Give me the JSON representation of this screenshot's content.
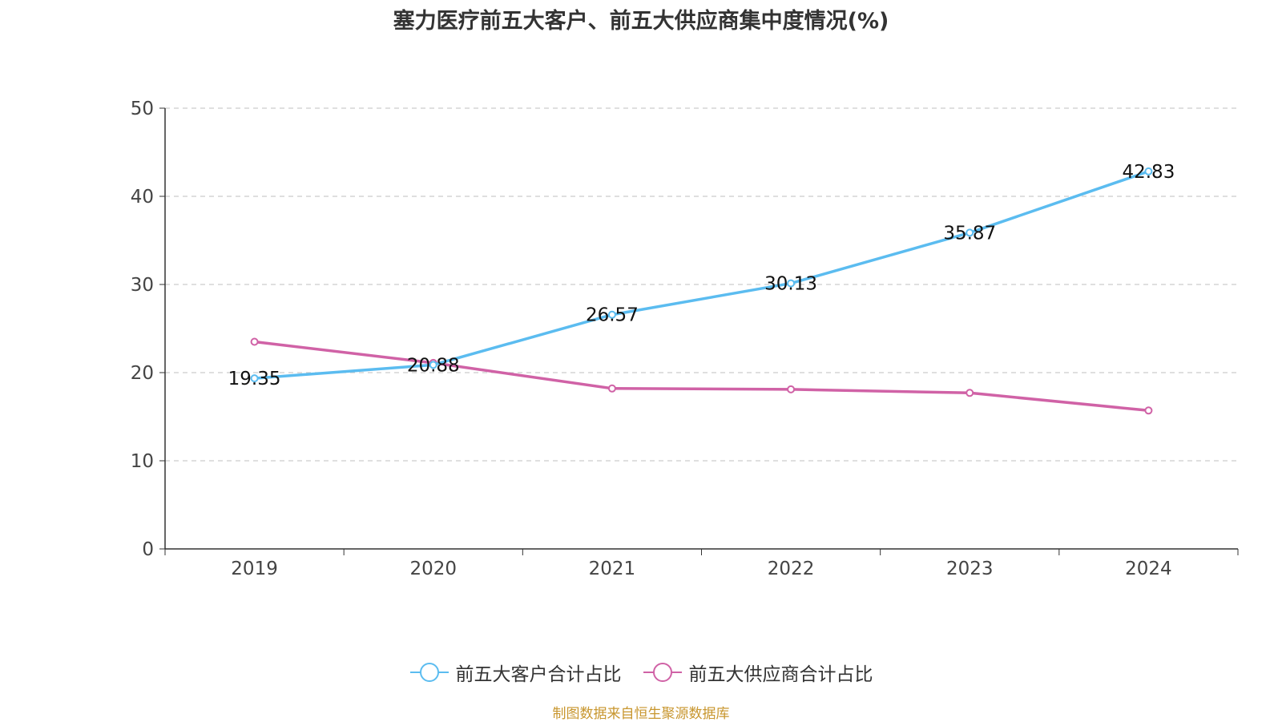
{
  "chart_data": {
    "type": "line",
    "title": "塞力医疗前五大客户、前五大供应商集中度情况(%)",
    "categories": [
      "2019",
      "2020",
      "2021",
      "2022",
      "2023",
      "2024"
    ],
    "ylim": [
      0,
      50
    ],
    "yticks": [
      "0",
      "10",
      "20",
      "30",
      "40",
      "50"
    ],
    "grid": "horizontal dashed",
    "legend_position": "bottom-center",
    "series": [
      {
        "name": "前五大客户合计占比",
        "color": "#5bbcf0",
        "values": [
          19.35,
          20.88,
          26.57,
          30.13,
          35.87,
          42.83
        ],
        "labels": [
          "19.35",
          "20.88",
          "26.57",
          "30.13",
          "35.87",
          "42.83"
        ]
      },
      {
        "name": "前五大供应商合计占比",
        "color": "#d062a6",
        "values": [
          23.5,
          21.1,
          18.2,
          18.1,
          17.7,
          15.7
        ]
      }
    ],
    "source": "制图数据来自恒生聚源数据库"
  }
}
